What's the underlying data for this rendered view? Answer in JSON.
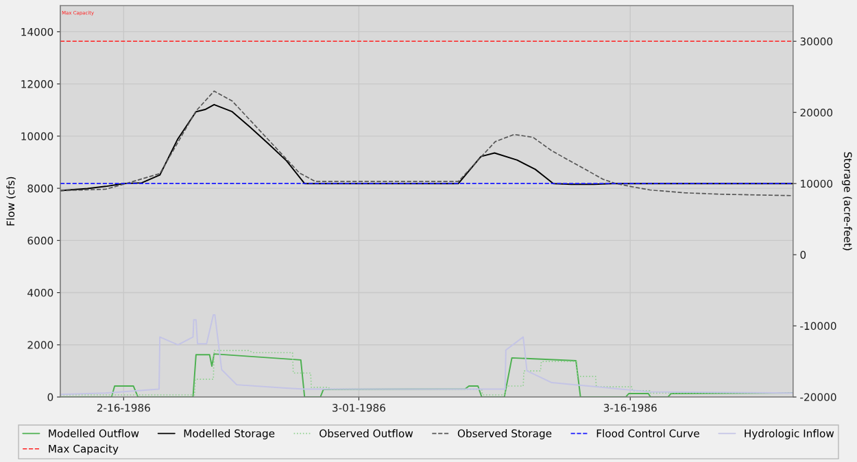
{
  "chart_data": {
    "type": "line",
    "xlabel": null,
    "ylabel": "Flow (cfs)",
    "y2label": "Storage (acre-feet)",
    "xlim": [
      "1986-02-12T12:00",
      "1986-03-25T00:00"
    ],
    "xticks": [
      {
        "value": "1986-02-16",
        "label": "2-16-1986"
      },
      {
        "value": "1986-03-01",
        "label": "3-01-1986"
      },
      {
        "value": "1986-03-16",
        "label": "3-16-1986"
      }
    ],
    "ylim": [
      0,
      15000
    ],
    "yticks": [
      0,
      2000,
      4000,
      6000,
      8000,
      10000,
      12000,
      14000
    ],
    "y2lim": [
      -20000,
      35000
    ],
    "y2ticks": [
      -20000,
      -10000,
      0,
      10000,
      20000,
      30000
    ],
    "grid": true,
    "legend": "bottom",
    "annotations": [
      "Max Capacity"
    ],
    "series": [
      {
        "name": "Modelled Outflow",
        "color": "#4cb050",
        "line_style": "solid",
        "x": [
          "1986-02-12T12:00",
          "1986-02-15T08:00",
          "1986-02-15T12:00",
          "1986-02-16T13:00",
          "1986-02-16T19:00",
          "1986-02-19T20:00",
          "1986-02-20T00:00",
          "1986-02-20T18:00",
          "1986-02-20T21:00",
          "1986-02-21T00:00",
          "1986-02-25T19:00",
          "1986-02-26T00:00",
          "1986-02-26T21:00",
          "1986-02-27T01:00",
          "1986-03-06T21:00",
          "1986-03-07T02:00",
          "1986-03-07T14:00",
          "1986-03-07T19:00",
          "1986-03-09T01:00",
          "1986-03-09T11:00",
          "1986-03-13T00:00",
          "1986-03-13T06:00",
          "1986-03-15T18:00",
          "1986-03-15T22:00",
          "1986-03-17T00:00",
          "1986-03-17T03:00",
          "1986-03-18T02:00",
          "1986-03-18T06:00",
          "1986-03-25T00:00"
        ],
        "values": [
          0,
          0,
          420,
          420,
          0,
          0,
          1620,
          1620,
          1180,
          1650,
          1420,
          0,
          0,
          290,
          310,
          420,
          420,
          0,
          0,
          1500,
          1390,
          0,
          0,
          130,
          130,
          0,
          0,
          130,
          160
        ]
      },
      {
        "name": "Modelled Storage",
        "color": "#000000",
        "line_style": "solid",
        "axis": "y2",
        "x": [
          "1986-02-12T12:00",
          "1986-02-13",
          "1986-02-14",
          "1986-02-15",
          "1986-02-16",
          "1986-02-17",
          "1986-02-18",
          "1986-02-19",
          "1986-02-20",
          "1986-02-20T12:00",
          "1986-02-21",
          "1986-02-22",
          "1986-02-23",
          "1986-02-24",
          "1986-02-25",
          "1986-02-26",
          "1986-03-06T12:00",
          "1986-03-07T18:00",
          "1986-03-08T12:00",
          "1986-03-09T18:00",
          "1986-03-10T18:00",
          "1986-03-11T18:00",
          "1986-03-12T18:00",
          "1986-03-14",
          "1986-03-15",
          "1986-03-25T00:00"
        ],
        "values": [
          9000,
          9100,
          9300,
          9600,
          10000,
          10100,
          11200,
          16300,
          20100,
          20400,
          21100,
          20100,
          17900,
          15600,
          13200,
          10000,
          10000,
          13800,
          14300,
          13300,
          12000,
          10000,
          9900,
          9900,
          10000,
          10000
        ]
      },
      {
        "name": "Observed Outflow",
        "color": "#8fd18f",
        "line_style": "dotted",
        "x": [
          "1986-02-12T12:00",
          "1986-02-16T20:00",
          "1986-02-19T22:00",
          "1986-02-19T23:00",
          "1986-02-20T23:00",
          "1986-02-21T00:00",
          "1986-02-22T22:00",
          "1986-02-23T04:00",
          "1986-02-25T08:00",
          "1986-02-25T09:00",
          "1986-02-26T08:00",
          "1986-02-26T09:00",
          "1986-02-27T08:00",
          "1986-02-27T09:00",
          "1986-03-07T19:00",
          "1986-03-07T20:00",
          "1986-03-09T02:00",
          "1986-03-09T03:00",
          "1986-03-10T02:00",
          "1986-03-10T03:00",
          "1986-03-11T01:00",
          "1986-03-11T02:00",
          "1986-03-13T01:00",
          "1986-03-13T02:00",
          "1986-03-14T02:00",
          "1986-03-14T03:00",
          "1986-03-16T02:00",
          "1986-03-16T03:00",
          "1986-03-17T02:00",
          "1986-03-17T03:00",
          "1986-03-25T00:00"
        ],
        "values": [
          80,
          80,
          80,
          680,
          680,
          1780,
          1780,
          1700,
          1700,
          920,
          920,
          370,
          370,
          300,
          300,
          80,
          80,
          420,
          420,
          1000,
          1000,
          1360,
          1360,
          790,
          790,
          390,
          390,
          240,
          240,
          150,
          160
        ]
      },
      {
        "name": "Observed Storage",
        "color": "#555555",
        "line_style": "dashed",
        "axis": "y2",
        "x": [
          "1986-02-12T12:00",
          "1986-02-15",
          "1986-02-16",
          "1986-02-18",
          "1986-02-20",
          "1986-02-21",
          "1986-02-22",
          "1986-02-25T17:00",
          "1986-02-26T14:00",
          "1986-03-06T12:00",
          "1986-03-08T13:00",
          "1986-03-09T14:00",
          "1986-03-10T15:00",
          "1986-03-11T16:00",
          "1986-03-14T12:00",
          "1986-03-15T05:00",
          "1986-03-16",
          "1986-03-17T02:00",
          "1986-03-19",
          "1986-03-21",
          "1986-03-25T00:00"
        ],
        "values": [
          9000,
          9200,
          9900,
          11400,
          20200,
          23000,
          21600,
          11500,
          10300,
          10300,
          15900,
          16900,
          16500,
          14600,
          10600,
          10000,
          9600,
          9100,
          8700,
          8500,
          8300
        ]
      },
      {
        "name": "Flood Control Curve",
        "color": "#1a1aff",
        "line_style": "dashed",
        "axis": "y2",
        "x": [
          "1986-02-12T12:00",
          "1986-03-25T00:00"
        ],
        "values": [
          10000,
          10000
        ]
      },
      {
        "name": "Hydrologic Inflow",
        "color": "#c4c4e6",
        "line_style": "solid",
        "x": [
          "1986-02-12T12:00",
          "1986-02-15",
          "1986-02-17T23:00",
          "1986-02-18T00:00",
          "1986-02-19",
          "1986-02-19T20:00",
          "1986-02-19T21:00",
          "1986-02-20T00:00",
          "1986-02-20T02:00",
          "1986-02-20T14:00",
          "1986-02-20T23:00",
          "1986-02-21T01:00",
          "1986-02-21T10:00",
          "1986-02-22T06:00",
          "1986-02-24T23:00",
          "1986-02-26",
          "1986-03-06",
          "1986-03-09T02:00",
          "1986-03-09T03:00",
          "1986-03-10T02:00",
          "1986-03-10T07:00",
          "1986-03-11T16:00",
          "1986-03-14",
          "1986-03-17",
          "1986-03-25T00:00"
        ],
        "values": [
          100,
          150,
          300,
          2300,
          2000,
          2300,
          2960,
          2960,
          2040,
          2040,
          3150,
          3150,
          1050,
          470,
          340,
          300,
          300,
          300,
          1800,
          2300,
          1000,
          550,
          400,
          200,
          150
        ]
      },
      {
        "name": "Max Capacity",
        "color": "#ff2020",
        "line_style": "dashed",
        "axis": "y2",
        "x": [
          "1986-02-12T12:00",
          "1986-03-25T00:00"
        ],
        "values": [
          30000,
          30000
        ]
      }
    ]
  }
}
